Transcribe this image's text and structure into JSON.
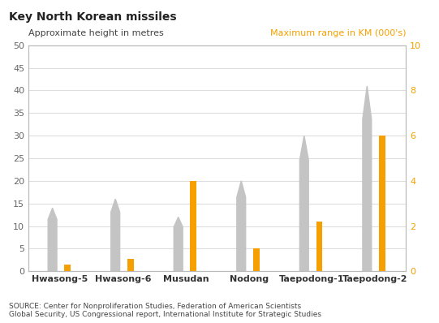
{
  "chart_data": {
    "type": "bar",
    "title": "Key North Korean missiles",
    "categories": [
      "Hwasong-5",
      "Hwasong-6",
      "Musudan",
      "Nodong",
      "Taepodong-1",
      "Taepodong-2"
    ],
    "series": [
      {
        "name": "Approximate height in metres",
        "color": "#c4c4c4",
        "values": [
          14,
          16,
          12,
          20,
          30,
          41
        ]
      },
      {
        "name": "Maximum range in KM (000's)",
        "color": "#f5a000",
        "values": [
          0.3,
          0.55,
          4.0,
          1.0,
          2.2,
          6.0
        ],
        "axis": "y2"
      }
    ],
    "ylim": [
      0,
      50
    ],
    "yticks": [
      0,
      5,
      10,
      15,
      20,
      25,
      30,
      35,
      40,
      45,
      50
    ],
    "y2lim": [
      0,
      10
    ],
    "y2ticks": [
      0,
      2,
      4,
      6,
      8,
      10
    ],
    "grid": true,
    "annotations": [
      "SOURCE: Center for Nonproliferation Studies, Federation of American Scientists\nGlobal Security, US Congressional report, International Institute for Strategic Studies"
    ]
  }
}
